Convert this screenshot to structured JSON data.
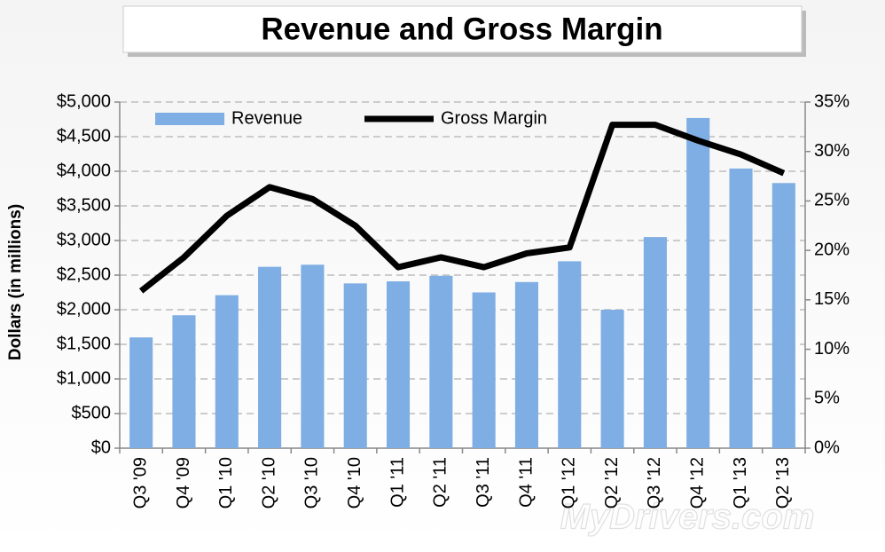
{
  "chart_data": {
    "type": "bar_line",
    "title": "Revenue and Gross Margin",
    "y_label": "Dollars (in millions)",
    "categories": [
      "Q3 '09",
      "Q4 '09",
      "Q1 '10",
      "Q2 '10",
      "Q3 '10",
      "Q4 '10",
      "Q1 '11",
      "Q2 '11",
      "Q3 '11",
      "Q4 '11",
      "Q1 '12",
      "Q2 '12",
      "Q3 '12",
      "Q4 '12",
      "Q1 '13",
      "Q2 '13"
    ],
    "series": [
      {
        "name": "Revenue",
        "type": "bar",
        "color": "#7eaee3",
        "values": [
          1600,
          1920,
          2210,
          2620,
          2650,
          2380,
          2410,
          2490,
          2250,
          2400,
          2700,
          2000,
          3050,
          4770,
          4040,
          3830
        ]
      },
      {
        "name": "Gross Margin",
        "type": "line",
        "axis": "y2",
        "color": "#000000",
        "values": [
          15.9,
          19.3,
          23.5,
          26.4,
          25.2,
          22.5,
          18.3,
          19.3,
          18.3,
          19.7,
          20.3,
          32.7,
          32.7,
          31.1,
          29.7,
          27.8
        ]
      }
    ],
    "ylim": [
      0,
      5000
    ],
    "yticks": [
      {
        "value": 0,
        "label": "$0"
      },
      {
        "value": 500,
        "label": "$500"
      },
      {
        "value": 1000,
        "label": "$1,000"
      },
      {
        "value": 1500,
        "label": "$1,500"
      },
      {
        "value": 2000,
        "label": "$2,000"
      },
      {
        "value": 2500,
        "label": "$2,500"
      },
      {
        "value": 3000,
        "label": "$3,000"
      },
      {
        "value": 3500,
        "label": "$3,500"
      },
      {
        "value": 4000,
        "label": "$4,000"
      },
      {
        "value": 4500,
        "label": "$4,500"
      },
      {
        "value": 5000,
        "label": "$5,000"
      }
    ],
    "y2lim": [
      0,
      35
    ],
    "y2ticks": [
      {
        "value": 0,
        "label": "0%"
      },
      {
        "value": 5,
        "label": "5%"
      },
      {
        "value": 10,
        "label": "10%"
      },
      {
        "value": 15,
        "label": "15%"
      },
      {
        "value": 20,
        "label": "20%"
      },
      {
        "value": 25,
        "label": "25%"
      },
      {
        "value": 30,
        "label": "30%"
      },
      {
        "value": 35,
        "label": "35%"
      }
    ],
    "grid": true,
    "legend": "top-left",
    "watermark": "MyDrivers.com"
  }
}
